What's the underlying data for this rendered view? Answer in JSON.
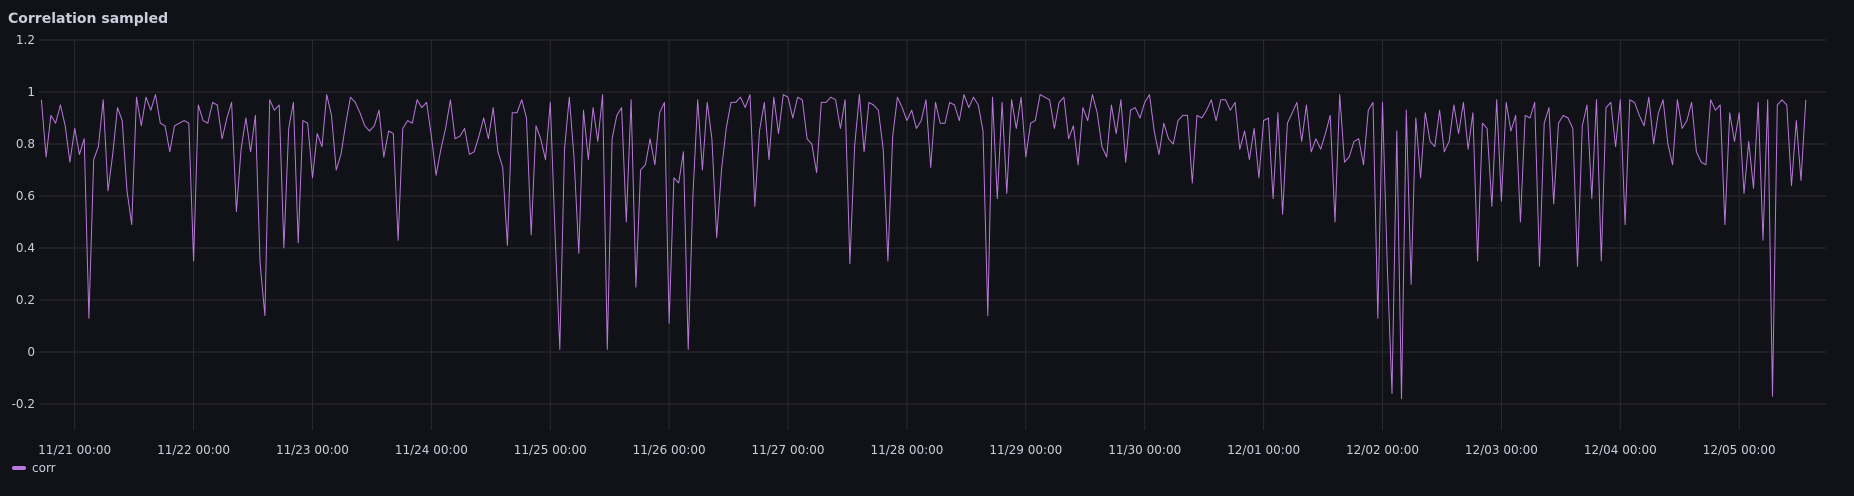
{
  "panel": {
    "title": "Correlation sampled"
  },
  "colors": {
    "background": "#111217",
    "grid": "#2a2b31",
    "text": "#ccccdc",
    "series": "#b877d9"
  },
  "chart_data": {
    "type": "line",
    "title": "Correlation sampled",
    "xlabel": "",
    "ylabel": "",
    "ylim": [
      -0.3,
      1.2
    ],
    "yticks": [
      -0.2,
      0,
      0.2,
      0.4,
      0.6,
      0.8,
      1,
      1.2
    ],
    "ytick_labels": [
      "-0.2",
      "0",
      "0.2",
      "0.4",
      "0.6",
      "0.8",
      "1",
      "1.2"
    ],
    "xlim_days": [
      -0.3,
      14.73
    ],
    "xticks_days": [
      0,
      1,
      2,
      3,
      4,
      5,
      6,
      7,
      8,
      9,
      10,
      11,
      12,
      13,
      14
    ],
    "xtick_labels": [
      "11/21 00:00",
      "11/22 00:00",
      "11/23 00:00",
      "11/24 00:00",
      "11/25 00:00",
      "11/26 00:00",
      "11/27 00:00",
      "11/28 00:00",
      "11/29 00:00",
      "11/30 00:00",
      "12/01 00:00",
      "12/02 00:00",
      "12/03 00:00",
      "12/04 00:00",
      "12/05 00:00"
    ],
    "grid": true,
    "legend_position": "bottom-left",
    "series": [
      {
        "name": "corr",
        "color": "#b877d9",
        "step_days": 0.04,
        "start_day": -0.28,
        "values": [
          0.97,
          0.75,
          0.91,
          0.88,
          0.95,
          0.87,
          0.73,
          0.86,
          0.76,
          0.82,
          0.13,
          0.74,
          0.79,
          0.97,
          0.62,
          0.76,
          0.94,
          0.89,
          0.62,
          0.49,
          0.98,
          0.87,
          0.98,
          0.93,
          0.99,
          0.88,
          0.87,
          0.77,
          0.87,
          0.88,
          0.89,
          0.88,
          0.35,
          0.95,
          0.89,
          0.88,
          0.96,
          0.95,
          0.82,
          0.9,
          0.96,
          0.54,
          0.78,
          0.9,
          0.77,
          0.91,
          0.34,
          0.14,
          0.97,
          0.93,
          0.95,
          0.4,
          0.86,
          0.96,
          0.42,
          0.89,
          0.88,
          0.67,
          0.84,
          0.79,
          0.99,
          0.91,
          0.7,
          0.76,
          0.88,
          0.98,
          0.96,
          0.92,
          0.87,
          0.85,
          0.87,
          0.93,
          0.75,
          0.85,
          0.84,
          0.43,
          0.86,
          0.89,
          0.88,
          0.97,
          0.94,
          0.96,
          0.83,
          0.68,
          0.78,
          0.86,
          0.97,
          0.82,
          0.83,
          0.86,
          0.76,
          0.77,
          0.83,
          0.9,
          0.82,
          0.94,
          0.77,
          0.71,
          0.41,
          0.92,
          0.92,
          0.97,
          0.9,
          0.45,
          0.87,
          0.82,
          0.74,
          0.96,
          0.46,
          0.01,
          0.78,
          0.98,
          0.75,
          0.38,
          0.93,
          0.74,
          0.94,
          0.81,
          0.99,
          0.01,
          0.82,
          0.91,
          0.94,
          0.5,
          0.97,
          0.25,
          0.7,
          0.72,
          0.82,
          0.72,
          0.92,
          0.96,
          0.11,
          0.67,
          0.65,
          0.77,
          0.01,
          0.6,
          0.97,
          0.7,
          0.96,
          0.82,
          0.44,
          0.7,
          0.86,
          0.96,
          0.96,
          0.98,
          0.94,
          0.99,
          0.56,
          0.85,
          0.96,
          0.74,
          0.98,
          0.84,
          0.99,
          0.98,
          0.9,
          0.98,
          0.97,
          0.82,
          0.8,
          0.69,
          0.96,
          0.96,
          0.98,
          0.97,
          0.86,
          0.97,
          0.34,
          0.79,
          0.99,
          0.77,
          0.96,
          0.95,
          0.93,
          0.78,
          0.35,
          0.83,
          0.98,
          0.94,
          0.89,
          0.93,
          0.86,
          0.89,
          0.97,
          0.71,
          0.96,
          0.88,
          0.88,
          0.96,
          0.95,
          0.89,
          0.99,
          0.94,
          0.98,
          0.95,
          0.85,
          0.14,
          0.98,
          0.59,
          0.96,
          0.61,
          0.97,
          0.86,
          0.98,
          0.75,
          0.88,
          0.89,
          0.99,
          0.98,
          0.97,
          0.86,
          0.96,
          0.98,
          0.82,
          0.87,
          0.72,
          0.94,
          0.89,
          0.99,
          0.92,
          0.79,
          0.75,
          0.95,
          0.84,
          0.97,
          0.73,
          0.93,
          0.94,
          0.9,
          0.96,
          0.99,
          0.85,
          0.76,
          0.88,
          0.82,
          0.8,
          0.89,
          0.91,
          0.91,
          0.65,
          0.91,
          0.9,
          0.93,
          0.97,
          0.89,
          0.97,
          0.97,
          0.93,
          0.96,
          0.78,
          0.85,
          0.74,
          0.86,
          0.67,
          0.89,
          0.9,
          0.59,
          0.92,
          0.53,
          0.88,
          0.92,
          0.96,
          0.81,
          0.95,
          0.77,
          0.82,
          0.78,
          0.84,
          0.91,
          0.5,
          0.99,
          0.73,
          0.75,
          0.81,
          0.82,
          0.72,
          0.93,
          0.96,
          0.13,
          0.96,
          0.33,
          -0.16,
          0.85,
          -0.18,
          0.93,
          0.26,
          0.9,
          0.67,
          0.92,
          0.81,
          0.79,
          0.93,
          0.77,
          0.81,
          0.95,
          0.84,
          0.96,
          0.78,
          0.92,
          0.35,
          0.88,
          0.86,
          0.56,
          0.97,
          0.58,
          0.96,
          0.85,
          0.91,
          0.5,
          0.91,
          0.9,
          0.96,
          0.33,
          0.88,
          0.94,
          0.57,
          0.88,
          0.91,
          0.9,
          0.86,
          0.33,
          0.87,
          0.95,
          0.59,
          0.97,
          0.35,
          0.94,
          0.96,
          0.79,
          0.97,
          0.49,
          0.97,
          0.96,
          0.91,
          0.87,
          0.98,
          0.8,
          0.92,
          0.97,
          0.8,
          0.72,
          0.97,
          0.86,
          0.89,
          0.96,
          0.77,
          0.73,
          0.72,
          0.97,
          0.93,
          0.95,
          0.49,
          0.92,
          0.81,
          0.92,
          0.61,
          0.81,
          0.63,
          0.96,
          0.43,
          0.97,
          -0.17,
          0.95,
          0.97,
          0.95,
          0.64,
          0.89,
          0.66,
          0.97
        ]
      }
    ]
  }
}
